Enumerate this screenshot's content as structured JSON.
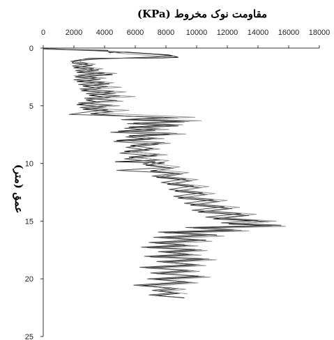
{
  "chart_data": {
    "type": "line",
    "title": "مقاومت نوک مخروط (KPa)",
    "xlabel": "",
    "ylabel": "عمق (متر)",
    "xlim": [
      0,
      18000
    ],
    "ylim": [
      0,
      25
    ],
    "y_inverted": true,
    "x_axis_position": "top",
    "x_ticks": [
      0,
      2000,
      4000,
      6000,
      8000,
      10000,
      12000,
      14000,
      16000,
      18000
    ],
    "y_ticks": [
      0,
      5,
      10,
      15,
      20,
      25
    ],
    "grid": false,
    "legend": "none",
    "series": [
      {
        "color": "#111111",
        "points": [
          [
            0,
            0.05
          ],
          [
            600,
            0.08
          ],
          [
            1500,
            0.12
          ],
          [
            4200,
            0.2
          ],
          [
            4300,
            0.4
          ],
          [
            5400,
            0.35
          ],
          [
            8200,
            0.6
          ],
          [
            8800,
            0.8
          ],
          [
            7800,
            0.85
          ],
          [
            3000,
            0.9
          ],
          [
            2000,
            1.1
          ],
          [
            1900,
            1.3
          ],
          [
            3200,
            1.5
          ],
          [
            2000,
            1.7
          ],
          [
            3600,
            1.9
          ],
          [
            2200,
            2.1
          ],
          [
            4500,
            2.3
          ],
          [
            2100,
            2.5
          ],
          [
            3700,
            2.7
          ],
          [
            2200,
            2.9
          ],
          [
            4300,
            3.1
          ],
          [
            2600,
            3.3
          ],
          [
            3800,
            3.5
          ],
          [
            2500,
            3.7
          ],
          [
            4700,
            3.9
          ],
          [
            3000,
            4.1
          ],
          [
            4400,
            4.3
          ],
          [
            2800,
            4.5
          ],
          [
            3700,
            4.7
          ],
          [
            2200,
            4.9
          ],
          [
            4100,
            5.1
          ],
          [
            2600,
            5.3
          ],
          [
            4600,
            5.5
          ],
          [
            3100,
            5.7
          ],
          [
            5500,
            5.9
          ],
          [
            8800,
            6.05
          ],
          [
            5400,
            6.2
          ],
          [
            9500,
            6.35
          ],
          [
            5900,
            6.5
          ],
          [
            8600,
            6.65
          ],
          [
            5600,
            6.85
          ],
          [
            7600,
            7.0
          ],
          [
            4900,
            7.2
          ],
          [
            8700,
            7.4
          ],
          [
            5600,
            7.6
          ],
          [
            7400,
            7.8
          ],
          [
            4800,
            8.0
          ],
          [
            7900,
            8.2
          ],
          [
            5700,
            8.45
          ],
          [
            7200,
            8.7
          ],
          [
            5300,
            8.95
          ],
          [
            7600,
            9.2
          ],
          [
            5600,
            9.45
          ],
          [
            7700,
            9.7
          ],
          [
            4700,
            9.85
          ],
          [
            7900,
            9.95
          ],
          [
            6700,
            10.15
          ],
          [
            8500,
            10.4
          ],
          [
            7000,
            10.65
          ],
          [
            9100,
            10.9
          ],
          [
            7400,
            11.2
          ],
          [
            9700,
            11.5
          ],
          [
            8100,
            11.8
          ],
          [
            10300,
            12.1
          ],
          [
            8600,
            12.4
          ],
          [
            10700,
            12.7
          ],
          [
            8800,
            13.0
          ],
          [
            11500,
            13.3
          ],
          [
            9600,
            13.6
          ],
          [
            12300,
            13.9
          ],
          [
            10100,
            14.2
          ],
          [
            13400,
            14.5
          ],
          [
            11100,
            14.8
          ],
          [
            14700,
            15.05
          ],
          [
            12100,
            15.25
          ],
          [
            14900,
            15.4
          ],
          [
            9800,
            15.6
          ],
          [
            12900,
            15.8
          ],
          [
            7900,
            16.0
          ],
          [
            11300,
            16.2
          ],
          [
            7700,
            16.45
          ],
          [
            10600,
            16.65
          ],
          [
            7300,
            16.9
          ],
          [
            9600,
            17.1
          ],
          [
            6800,
            17.3
          ],
          [
            10300,
            17.5
          ],
          [
            7900,
            17.7
          ],
          [
            9800,
            17.9
          ],
          [
            7000,
            18.1
          ],
          [
            10800,
            18.3
          ],
          [
            7800,
            18.55
          ],
          [
            10200,
            18.8
          ],
          [
            6700,
            19.05
          ],
          [
            9800,
            19.3
          ],
          [
            7400,
            19.55
          ],
          [
            10500,
            19.8
          ],
          [
            7200,
            20.05
          ],
          [
            9700,
            20.3
          ],
          [
            6300,
            20.6
          ],
          [
            8800,
            20.85
          ],
          [
            7500,
            21.05
          ],
          [
            8900,
            21.25
          ],
          [
            7300,
            21.45
          ],
          [
            9200,
            21.65
          ]
        ]
      },
      {
        "color": "#9a9a9a",
        "points": [
          [
            0,
            0.1
          ],
          [
            1200,
            0.15
          ],
          [
            4000,
            0.25
          ],
          [
            5000,
            0.45
          ],
          [
            8000,
            0.75
          ],
          [
            2500,
            1.0
          ],
          [
            2400,
            1.2
          ],
          [
            3400,
            1.4
          ],
          [
            2300,
            1.6
          ],
          [
            3900,
            1.8
          ],
          [
            2400,
            2.0
          ],
          [
            4800,
            2.2
          ],
          [
            2000,
            2.4
          ],
          [
            4100,
            2.6
          ],
          [
            2500,
            2.8
          ],
          [
            4600,
            3.0
          ],
          [
            2900,
            3.2
          ],
          [
            5100,
            3.4
          ],
          [
            2700,
            3.6
          ],
          [
            5400,
            3.8
          ],
          [
            3300,
            4.0
          ],
          [
            6000,
            4.2
          ],
          [
            3100,
            4.4
          ],
          [
            5200,
            4.6
          ],
          [
            2500,
            4.8
          ],
          [
            5000,
            5.0
          ],
          [
            2900,
            5.2
          ],
          [
            5600,
            5.4
          ],
          [
            3400,
            5.6
          ],
          [
            6400,
            5.8
          ],
          [
            9900,
            6.0
          ],
          [
            5900,
            6.15
          ],
          [
            10300,
            6.3
          ],
          [
            6300,
            6.5
          ],
          [
            9100,
            6.65
          ],
          [
            5900,
            6.9
          ],
          [
            8200,
            7.05
          ],
          [
            5400,
            7.25
          ],
          [
            9300,
            7.45
          ],
          [
            6000,
            7.65
          ],
          [
            7900,
            7.85
          ],
          [
            5300,
            8.05
          ],
          [
            8300,
            8.25
          ],
          [
            6100,
            8.5
          ],
          [
            7600,
            8.75
          ],
          [
            5700,
            9.0
          ],
          [
            8100,
            9.25
          ],
          [
            5900,
            9.5
          ],
          [
            8200,
            9.75
          ],
          [
            7100,
            10.0
          ],
          [
            8900,
            10.3
          ],
          [
            7400,
            10.55
          ],
          [
            9500,
            10.8
          ],
          [
            7800,
            11.1
          ],
          [
            10100,
            11.4
          ],
          [
            8400,
            11.7
          ],
          [
            10800,
            12.0
          ],
          [
            9000,
            12.3
          ],
          [
            11200,
            12.6
          ],
          [
            9300,
            12.9
          ],
          [
            12000,
            13.2
          ],
          [
            10000,
            13.5
          ],
          [
            12800,
            13.8
          ],
          [
            10600,
            14.1
          ],
          [
            13900,
            14.4
          ],
          [
            11500,
            14.7
          ],
          [
            15200,
            15.0
          ],
          [
            12600,
            15.2
          ],
          [
            15800,
            15.45
          ],
          [
            10300,
            15.65
          ],
          [
            13400,
            15.85
          ],
          [
            8400,
            16.05
          ],
          [
            11800,
            16.3
          ],
          [
            8100,
            16.5
          ],
          [
            11000,
            16.75
          ],
          [
            7800,
            16.95
          ],
          [
            10100,
            17.15
          ],
          [
            7300,
            17.35
          ],
          [
            10700,
            17.55
          ],
          [
            8300,
            17.75
          ],
          [
            10300,
            17.95
          ],
          [
            7500,
            18.15
          ],
          [
            11300,
            18.35
          ],
          [
            8200,
            18.6
          ],
          [
            10600,
            18.85
          ],
          [
            7100,
            19.1
          ],
          [
            10200,
            19.35
          ],
          [
            7900,
            19.6
          ],
          [
            10900,
            19.85
          ],
          [
            7600,
            20.1
          ],
          [
            10100,
            20.35
          ],
          [
            6900,
            20.65
          ],
          [
            9300,
            20.9
          ],
          [
            8000,
            21.1
          ],
          [
            9400,
            21.3
          ]
        ]
      },
      {
        "color": "#4a4a4a",
        "points": [
          [
            300,
            0.05
          ],
          [
            2600,
            0.18
          ],
          [
            4600,
            0.3
          ],
          [
            7400,
            0.55
          ],
          [
            8500,
            0.7
          ],
          [
            3500,
            0.95
          ],
          [
            1800,
            1.15
          ],
          [
            2900,
            1.35
          ],
          [
            1900,
            1.55
          ],
          [
            3300,
            1.75
          ],
          [
            2100,
            1.95
          ],
          [
            4000,
            2.15
          ],
          [
            2300,
            2.35
          ],
          [
            3500,
            2.55
          ],
          [
            2000,
            2.75
          ],
          [
            4000,
            2.95
          ],
          [
            2300,
            3.15
          ],
          [
            4200,
            3.35
          ],
          [
            2400,
            3.55
          ],
          [
            4600,
            3.75
          ],
          [
            2800,
            3.95
          ],
          [
            5000,
            4.15
          ],
          [
            2700,
            4.35
          ],
          [
            4800,
            4.55
          ],
          [
            2300,
            4.75
          ],
          [
            4500,
            4.95
          ],
          [
            2400,
            5.15
          ],
          [
            4200,
            5.35
          ],
          [
            2800,
            5.55
          ],
          [
            1700,
            5.75
          ],
          [
            4300,
            5.85
          ],
          [
            7900,
            6.0
          ],
          [
            5100,
            6.2
          ],
          [
            9200,
            6.4
          ],
          [
            5500,
            6.55
          ],
          [
            8800,
            6.75
          ],
          [
            5300,
            6.95
          ],
          [
            7300,
            7.15
          ],
          [
            4400,
            7.3
          ],
          [
            8200,
            7.5
          ],
          [
            5400,
            7.7
          ],
          [
            7000,
            7.9
          ],
          [
            4600,
            8.1
          ],
          [
            7500,
            8.35
          ],
          [
            5400,
            8.6
          ],
          [
            6900,
            8.85
          ],
          [
            5000,
            9.1
          ],
          [
            7400,
            9.35
          ],
          [
            5300,
            9.6
          ],
          [
            7300,
            9.85
          ],
          [
            6500,
            10.05
          ],
          [
            8100,
            10.35
          ],
          [
            4800,
            10.6
          ],
          [
            8700,
            10.85
          ],
          [
            7100,
            11.1
          ],
          [
            9300,
            11.35
          ],
          [
            7700,
            11.65
          ],
          [
            9800,
            11.95
          ],
          [
            8200,
            12.25
          ],
          [
            10400,
            12.55
          ],
          [
            8500,
            12.85
          ],
          [
            11100,
            13.15
          ],
          [
            9200,
            13.45
          ],
          [
            11800,
            13.75
          ],
          [
            9700,
            14.05
          ],
          [
            12900,
            14.35
          ],
          [
            10600,
            14.65
          ],
          [
            14000,
            14.95
          ],
          [
            11600,
            15.15
          ],
          [
            15500,
            15.35
          ],
          [
            9300,
            15.55
          ],
          [
            12400,
            15.75
          ],
          [
            7500,
            15.95
          ],
          [
            10700,
            16.15
          ],
          [
            7200,
            16.4
          ],
          [
            10100,
            16.6
          ],
          [
            6900,
            16.85
          ],
          [
            9200,
            17.05
          ],
          [
            6400,
            17.25
          ],
          [
            9900,
            17.45
          ],
          [
            7500,
            17.65
          ],
          [
            9400,
            17.85
          ],
          [
            6600,
            18.05
          ],
          [
            10400,
            18.25
          ],
          [
            7400,
            18.5
          ],
          [
            9800,
            18.75
          ],
          [
            6300,
            19.0
          ],
          [
            9400,
            19.25
          ],
          [
            7000,
            19.5
          ],
          [
            10100,
            19.75
          ],
          [
            6800,
            20.0
          ],
          [
            9300,
            20.25
          ],
          [
            5900,
            20.55
          ],
          [
            8400,
            20.8
          ],
          [
            7100,
            21.0
          ],
          [
            8500,
            21.2
          ],
          [
            6900,
            21.4
          ],
          [
            8800,
            21.6
          ]
        ]
      }
    ]
  }
}
